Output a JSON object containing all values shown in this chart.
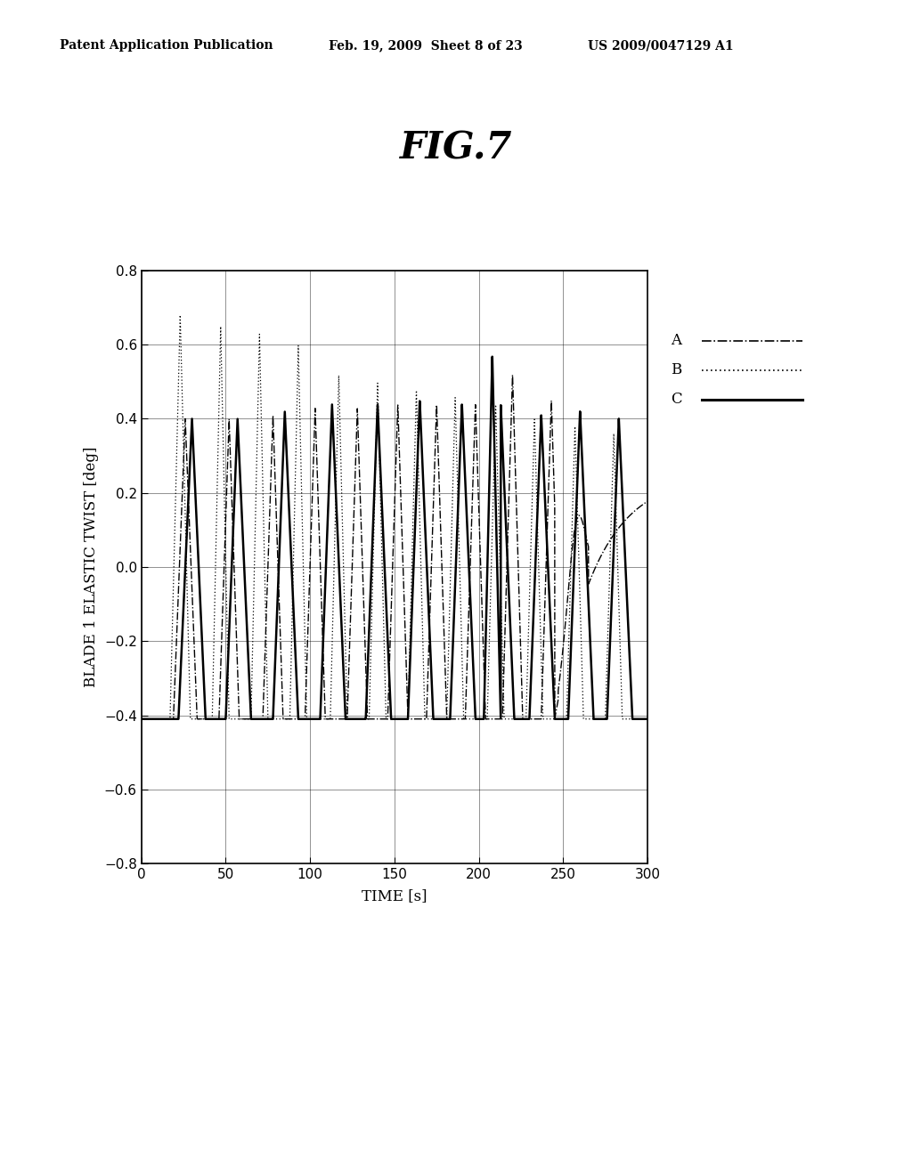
{
  "title": "FIG.7",
  "xlabel": "TIME [s]",
  "ylabel": "BLADE 1 ELASTIC TWIST [deg]",
  "xlim": [
    0,
    300
  ],
  "ylim": [
    -0.8,
    0.8
  ],
  "xticks": [
    0,
    50,
    100,
    150,
    200,
    250,
    300
  ],
  "yticks": [
    -0.8,
    -0.6,
    -0.4,
    -0.2,
    0.0,
    0.2,
    0.4,
    0.6,
    0.8
  ],
  "legend_labels": [
    "A",
    "B",
    "C"
  ],
  "header_left": "Patent Application Publication",
  "header_mid": "Feb. 19, 2009  Sheet 8 of 23",
  "header_right": "US 2009/0047129 A1",
  "bg_color": "#ffffff",
  "line_color": "#000000",
  "title_fontsize": 30,
  "header_fontsize": 10,
  "axis_label_fontsize": 12,
  "tick_fontsize": 11
}
